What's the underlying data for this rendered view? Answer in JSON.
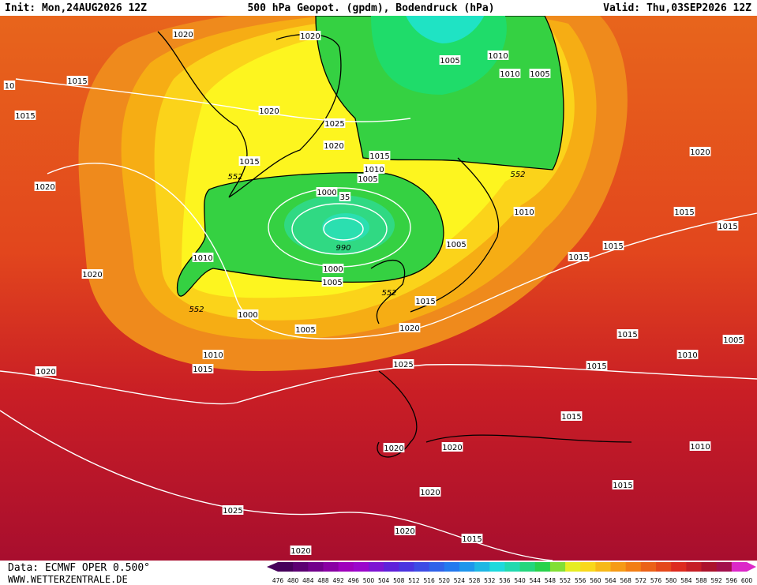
{
  "header": {
    "init": "Init: Mon,24AUG2026 12Z",
    "title": "500 hPa Geopot. (gpdm), Bodendruck (hPa)",
    "valid": "Valid: Thu,03SEP2026 12Z"
  },
  "footer": {
    "source": "Data: ECMWF OPER 0.500°",
    "site": "WWW.WETTERZENTRALE.DE"
  },
  "isobar_labels": [
    "1020",
    "1020",
    "1005",
    "1010",
    "1010",
    "1005",
    "10",
    "1015",
    "1015",
    "1020",
    "1025",
    "1020",
    "1015",
    "1015",
    "552",
    "1010",
    "1005",
    "1020",
    "1000",
    "35",
    "552",
    "1020",
    "1010",
    "1015",
    "1015",
    "990",
    "1005",
    "1015",
    "1015",
    "1010",
    "1020",
    "1000",
    "1005",
    "552",
    "1015",
    "552",
    "1000",
    "1005",
    "1020",
    "1015",
    "1005",
    "1010",
    "1010",
    "1015",
    "1015",
    "1025",
    "1020",
    "1015",
    "1020",
    "1020",
    "1010",
    "1020",
    "1015",
    "1025",
    "1020",
    "1015",
    "1020"
  ],
  "colorbar": {
    "labels": [
      476,
      480,
      484,
      488,
      492,
      496,
      500,
      504,
      508,
      512,
      516,
      520,
      524,
      528,
      532,
      536,
      540,
      544,
      548,
      552,
      556,
      560,
      564,
      568,
      572,
      576,
      580,
      584,
      588,
      592,
      596,
      600
    ]
  }
}
